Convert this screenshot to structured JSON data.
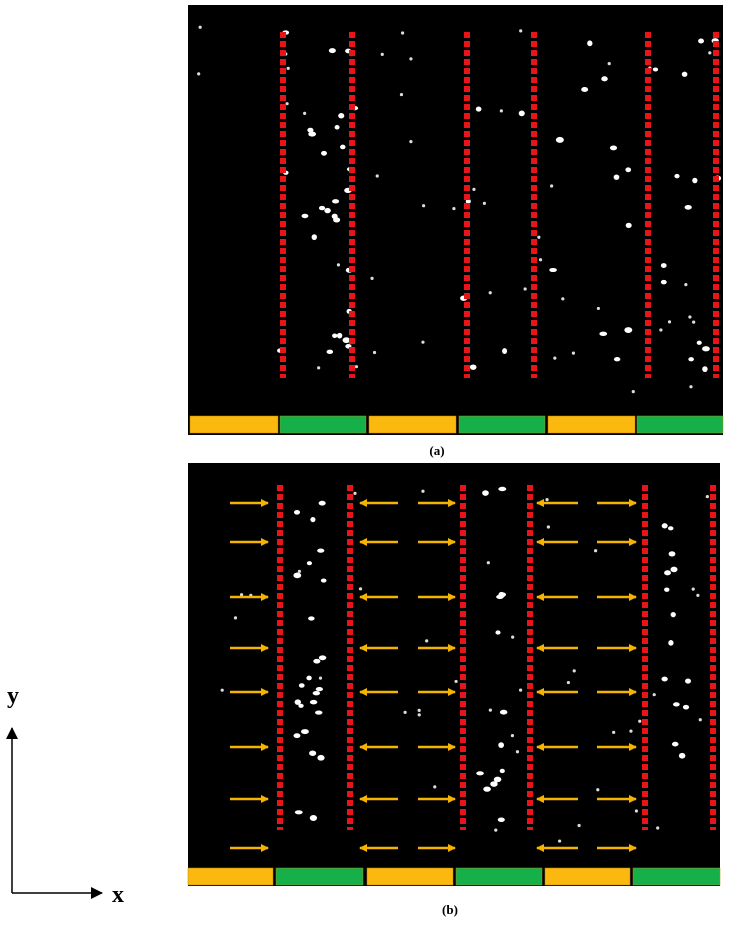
{
  "panels": [
    {
      "label": "(a)"
    },
    {
      "label": "(b)"
    }
  ],
  "axes": {
    "x": "x",
    "y": "y"
  }
}
